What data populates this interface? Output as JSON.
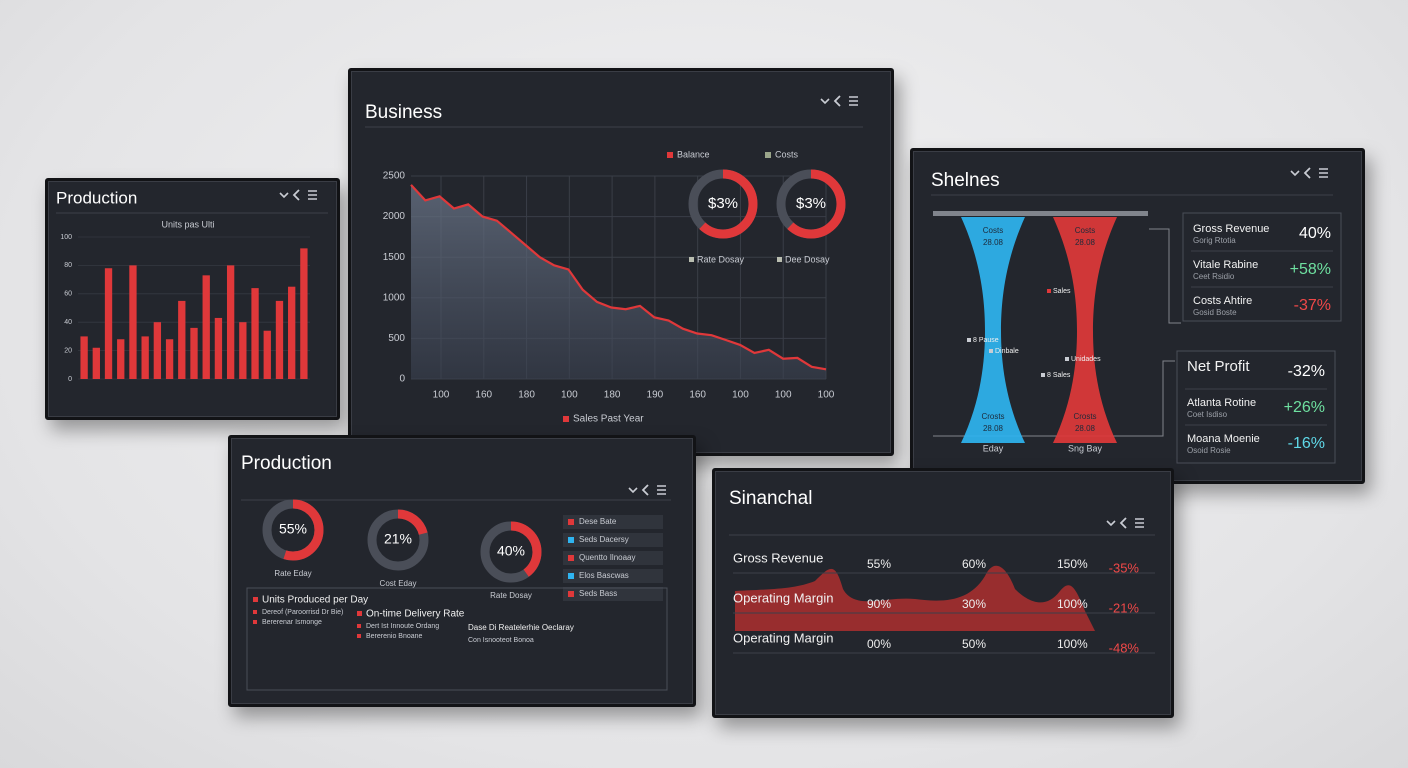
{
  "production_chart": {
    "title": "Production",
    "subtitle": "Units pas Ulti",
    "ylim": [
      0,
      100
    ],
    "yticks": [
      0,
      20,
      40,
      60,
      80,
      100
    ],
    "color": "#e0383a",
    "values": [
      30,
      22,
      78,
      28,
      80,
      30,
      40,
      28,
      55,
      36,
      73,
      43,
      80,
      40,
      64,
      34,
      55,
      65,
      92
    ]
  },
  "business_chart": {
    "title": "Business",
    "ylim": [
      0,
      2500
    ],
    "yticks": [
      0,
      500,
      1000,
      1500,
      2000,
      2500
    ],
    "x_labels": [
      "100",
      "160",
      "180",
      "100",
      "180",
      "190",
      "160",
      "100",
      "100",
      "100"
    ],
    "color": "#e0383a",
    "values": [
      2390,
      2200,
      2250,
      2100,
      2150,
      2000,
      1950,
      1800,
      1650,
      1500,
      1400,
      1350,
      1100,
      950,
      880,
      860,
      900,
      760,
      720,
      620,
      560,
      540,
      480,
      420,
      320,
      360,
      250,
      260,
      150,
      120
    ],
    "legend": "Sales Past Year",
    "donuts": [
      {
        "label": "$3%",
        "legend": "Balance",
        "caption": "Rate Dosay"
      },
      {
        "label": "$3%",
        "legend": "Costs",
        "caption": "Dee Dosay"
      }
    ]
  },
  "shelnes_panel": {
    "title": "Shelnes",
    "funnels": [
      {
        "color": "#2fb4f0",
        "top": [
          "Costs",
          "28.08"
        ],
        "bottom": [
          "Crosts",
          "28.08"
        ],
        "caption": "Eday"
      },
      {
        "color": "#e0383a",
        "top": [
          "Costs",
          "28.08"
        ],
        "bottom": [
          "Crosts",
          "28.08"
        ],
        "caption": "Sng Bay"
      }
    ],
    "notes": [
      "Sales",
      "8 Pause",
      "Dinbale",
      "Unidades",
      "8 Sales"
    ],
    "groups": [
      {
        "rows": [
          {
            "name": "Gross Revenue",
            "sub": "Gorig Rtotia",
            "value": "40%",
            "color": "#ffffff"
          },
          {
            "name": "Vitale Rabine",
            "sub": "Ceet Rsidio",
            "value": "+58%",
            "color": "#6ee0a0"
          },
          {
            "name": "Costs Ahtire",
            "sub": "Gosid Boste",
            "value": "-37%",
            "color": "#f04848"
          }
        ]
      },
      {
        "rows": [
          {
            "name": "Net Profit",
            "value": "-32%",
            "color": "#ffffff"
          },
          {
            "name": "Atlanta Rotine",
            "sub": "Coet Isdiso",
            "value": "+26%",
            "color": "#6ee0a0"
          },
          {
            "name": "Moana Moenie",
            "sub": "Osoid Rosie",
            "value": "-16%",
            "color": "#5fd8e8"
          }
        ]
      }
    ]
  },
  "production_panel": {
    "title": "Production",
    "values": [
      55,
      21,
      40
    ],
    "value_labels": [
      "55%",
      "21%",
      "40%"
    ],
    "captions": [
      "Rate Eday",
      "Cost Eday",
      "Rate Dosay"
    ],
    "color": "#e0383a",
    "legend": [
      {
        "label": "Dese Bate",
        "color": "#e0383a"
      },
      {
        "label": "Seds Dacersy",
        "color": "#2fb4f0"
      },
      {
        "label": "Quentto Ilnoaay",
        "color": "#e0383a"
      },
      {
        "label": "Elos Bascwas",
        "color": "#2fb4f0"
      },
      {
        "label": "Seds Bass",
        "color": "#e0383a"
      }
    ],
    "summary": [
      {
        "heading": "Units Produced per Day",
        "lines": [
          "Dereof (Paroorrisd Dr Bie)",
          "Bererenar Ismonge"
        ]
      },
      {
        "heading": "On-time Delivery Rate",
        "lines": [
          "Dert Ist Innoute Ordang",
          "Bererenio Bnoane"
        ]
      },
      {
        "heading": "Dase Di Reatelerhie Oeclaray",
        "lines": [
          "Con Isnooteot Bonoa"
        ]
      }
    ]
  },
  "sinanchal_panel": {
    "title": "Sinanchal",
    "rows": [
      {
        "name": "Gross Revenue",
        "cells": [
          "55%",
          "60%",
          "150%"
        ],
        "change": "-35%"
      },
      {
        "name": "Operating Margin",
        "cells": [
          "90%",
          "30%",
          "100%"
        ],
        "change": "-21%"
      },
      {
        "name": "Operating Margin",
        "cells": [
          "00%",
          "50%",
          "100%"
        ],
        "change": "-48%"
      }
    ]
  }
}
